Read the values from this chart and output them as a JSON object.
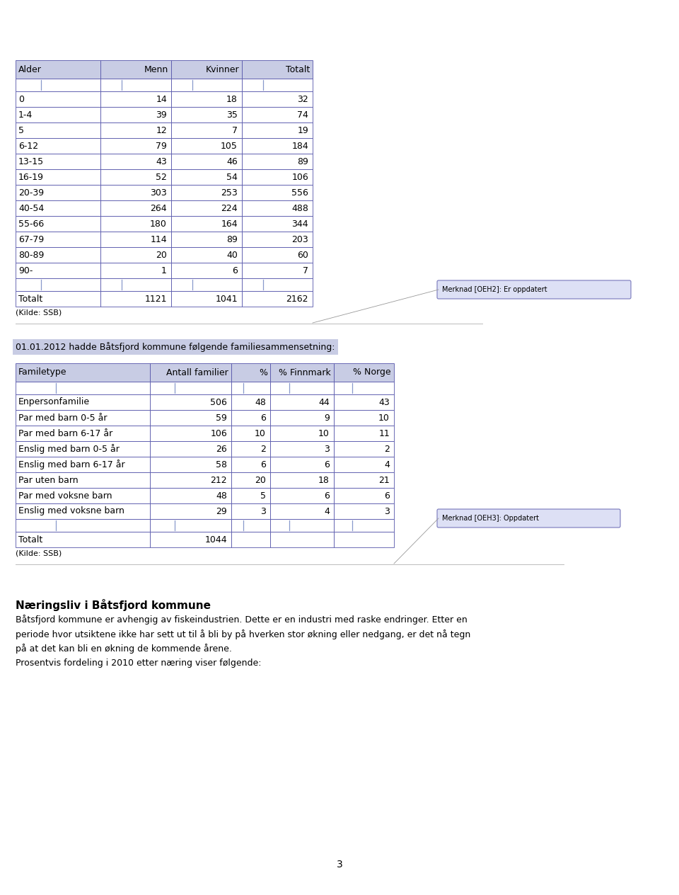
{
  "page_bg": "#ffffff",
  "table1": {
    "headers": [
      "Alder",
      "Menn",
      "Kvinner",
      "Totalt"
    ],
    "rows": [
      [
        "0",
        "14",
        "18",
        "32"
      ],
      [
        "1-4",
        "39",
        "35",
        "74"
      ],
      [
        "5",
        "12",
        "7",
        "19"
      ],
      [
        "6-12",
        "79",
        "105",
        "184"
      ],
      [
        "13-15",
        "43",
        "46",
        "89"
      ],
      [
        "16-19",
        "52",
        "54",
        "106"
      ],
      [
        "20-39",
        "303",
        "253",
        "556"
      ],
      [
        "40-54",
        "264",
        "224",
        "488"
      ],
      [
        "55-66",
        "180",
        "164",
        "344"
      ],
      [
        "67-79",
        "114",
        "89",
        "203"
      ],
      [
        "80-89",
        "20",
        "40",
        "60"
      ],
      [
        "90-",
        "1",
        "6",
        "7"
      ]
    ],
    "total_row": [
      "Totalt",
      "1121",
      "1041",
      "2162"
    ],
    "source": "(Kilde: SSB)"
  },
  "merknad1": {
    "text": "Merknad [OEH2]: Er oppdatert"
  },
  "intro_text": "01.01.2012 hadde Båtsfjord kommune følgende familiesammensetning:",
  "table2": {
    "headers": [
      "Familetype",
      "Antall familier",
      "%",
      "% Finnmark",
      "% Norge"
    ],
    "rows": [
      [
        "Enpersonfamilie",
        "506",
        "48",
        "44",
        "43"
      ],
      [
        "Par med barn 0-5 år",
        "59",
        "6",
        "9",
        "10"
      ],
      [
        "Par med barn 6-17 år",
        "106",
        "10",
        "10",
        "11"
      ],
      [
        "Enslig med barn 0-5 år",
        "26",
        "2",
        "3",
        "2"
      ],
      [
        "Enslig med barn 6-17 år",
        "58",
        "6",
        "6",
        "4"
      ],
      [
        "Par uten barn",
        "212",
        "20",
        "18",
        "21"
      ],
      [
        "Par med voksne barn",
        "48",
        "5",
        "6",
        "6"
      ],
      [
        "Enslig med voksne barn",
        "29",
        "3",
        "4",
        "3"
      ]
    ],
    "total_row": [
      "Totalt",
      "1044",
      "",
      "",
      ""
    ],
    "source": "(Kilde: SSB)"
  },
  "merknad2": {
    "text": "Merknad [OEH3]: Oppdatert"
  },
  "section_title": "Næringsliv i Båtsfjord kommune",
  "body_text1": "Båtsfjord kommune er avhengig av fiskeindustrien. Dette er en industri med raske endringer. Etter en periode hvor utsiktene ikke har sett ut til å bli by på hverken stor økning eller nedgang, er det nå tegn på at det kan bli en økning de kommende årene.",
  "body_text2": "Prosentvis fordeling i 2010 etter næring viser følgende:",
  "page_number": "3",
  "header_fill": "#c8cce4",
  "border_color": "#5555aa",
  "text_color": "#000000"
}
